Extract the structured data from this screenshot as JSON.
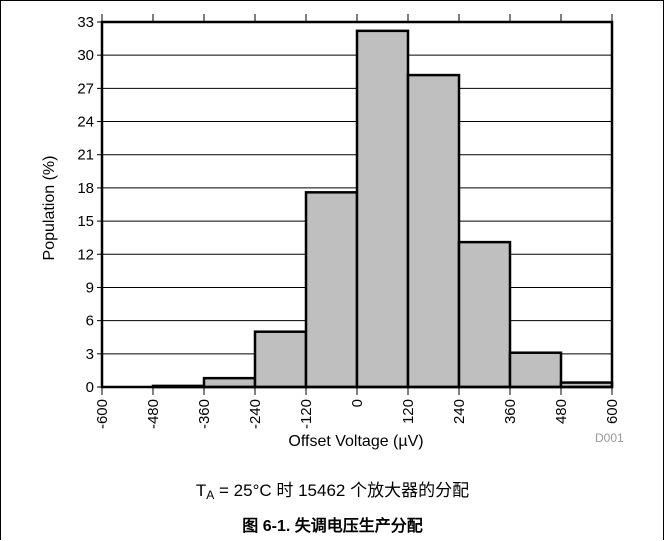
{
  "chart_data": {
    "type": "bar",
    "categories": [
      "-600",
      "-480",
      "-360",
      "-240",
      "-120",
      "0",
      "120",
      "240",
      "360",
      "480",
      "600"
    ],
    "bin_edges": [
      -600,
      -480,
      -360,
      -240,
      -120,
      0,
      120,
      240,
      360,
      480,
      600
    ],
    "bins": [
      {
        "from": -600,
        "to": -480,
        "value": 0
      },
      {
        "from": -480,
        "to": -360,
        "value": 0.1
      },
      {
        "from": -360,
        "to": -240,
        "value": 0.8
      },
      {
        "from": -240,
        "to": -120,
        "value": 5.0
      },
      {
        "from": -120,
        "to": 0,
        "value": 17.6
      },
      {
        "from": 0,
        "to": 120,
        "value": 32.2
      },
      {
        "from": 120,
        "to": 240,
        "value": 28.2
      },
      {
        "from": 240,
        "to": 360,
        "value": 13.1
      },
      {
        "from": 360,
        "to": 480,
        "value": 3.1
      },
      {
        "from": 480,
        "to": 600,
        "value": 0.4
      }
    ],
    "xlabel": "Offset Voltage (µV)",
    "ylabel": "Population (%)",
    "xlim": [
      -600,
      600
    ],
    "ylim": [
      0,
      33
    ],
    "yticks": [
      0,
      3,
      6,
      9,
      12,
      15,
      18,
      21,
      24,
      27,
      30,
      33
    ],
    "grid": true,
    "bar_color": "#bfbfbf",
    "note": "D001"
  },
  "caption": {
    "prefix": "T",
    "subscript": "A",
    "text": " = 25°C 时 15462 个放大器的分配"
  },
  "figure_title": "图 6-1. 失调电压生产分配"
}
